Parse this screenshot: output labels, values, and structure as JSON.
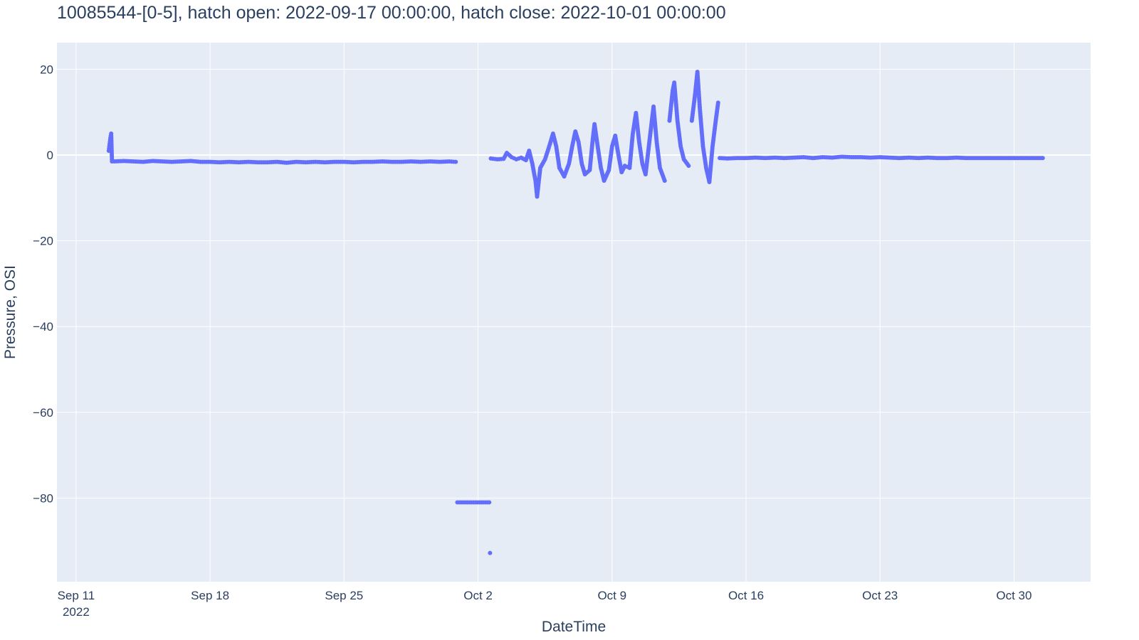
{
  "chart_data": {
    "type": "scatter",
    "title": "10085544-[0-5], hatch open: 2022-09-17 00:00:00, hatch close: 2022-10-01 00:00:00",
    "xlabel": "DateTime",
    "ylabel": "Pressure, OSI",
    "x_range": [
      "2022-09-10T00:00:00",
      "2022-11-03T00:00:00"
    ],
    "ylim": [
      -99.5,
      26.2
    ],
    "x_ticks": [
      {
        "date": "2022-09-11",
        "label": "Sep 11",
        "sublabel": "2022"
      },
      {
        "date": "2022-09-18",
        "label": "Sep 18"
      },
      {
        "date": "2022-09-25",
        "label": "Sep 25"
      },
      {
        "date": "2022-10-02",
        "label": "Oct 2"
      },
      {
        "date": "2022-10-09",
        "label": "Oct 9"
      },
      {
        "date": "2022-10-16",
        "label": "Oct 16"
      },
      {
        "date": "2022-10-23",
        "label": "Oct 23"
      },
      {
        "date": "2022-10-30",
        "label": "Oct 30"
      }
    ],
    "y_ticks": [
      {
        "value": 20,
        "label": "20"
      },
      {
        "value": 0,
        "label": "0"
      },
      {
        "value": -20,
        "label": "−20"
      },
      {
        "value": -40,
        "label": "−40"
      },
      {
        "value": -60,
        "label": "−60"
      },
      {
        "value": -80,
        "label": "−80"
      }
    ],
    "grid": true,
    "marker_color": "#636efa",
    "plot_bg": "#e5ecf6",
    "grid_color": "#ffffff",
    "series": [
      {
        "points": [
          [
            "2022-09-12T17:00",
            1.0
          ],
          [
            "2022-09-12T18:00",
            2.5
          ],
          [
            "2022-09-12T19:00",
            4.0
          ],
          [
            "2022-09-12T20:00",
            5.0
          ],
          [
            "2022-09-12T21:00",
            -1.5
          ],
          [
            "2022-09-13T00:00",
            -1.5
          ],
          [
            "2022-09-13T12:00",
            -1.4
          ],
          [
            "2022-09-14T00:00",
            -1.5
          ],
          [
            "2022-09-14T12:00",
            -1.6
          ],
          [
            "2022-09-15T00:00",
            -1.4
          ],
          [
            "2022-09-15T12:00",
            -1.5
          ],
          [
            "2022-09-16T00:00",
            -1.6
          ],
          [
            "2022-09-16T12:00",
            -1.5
          ],
          [
            "2022-09-17T00:00",
            -1.4
          ],
          [
            "2022-09-17T12:00",
            -1.6
          ],
          [
            "2022-09-18T00:00",
            -1.6
          ],
          [
            "2022-09-18T12:00",
            -1.7
          ],
          [
            "2022-09-19T00:00",
            -1.6
          ],
          [
            "2022-09-19T12:00",
            -1.7
          ],
          [
            "2022-09-20T00:00",
            -1.6
          ],
          [
            "2022-09-20T12:00",
            -1.7
          ],
          [
            "2022-09-21T00:00",
            -1.7
          ],
          [
            "2022-09-21T12:00",
            -1.6
          ],
          [
            "2022-09-22T00:00",
            -1.8
          ],
          [
            "2022-09-22T12:00",
            -1.6
          ],
          [
            "2022-09-23T00:00",
            -1.7
          ],
          [
            "2022-09-23T12:00",
            -1.6
          ],
          [
            "2022-09-24T00:00",
            -1.7
          ],
          [
            "2022-09-24T12:00",
            -1.6
          ],
          [
            "2022-09-25T00:00",
            -1.6
          ],
          [
            "2022-09-25T12:00",
            -1.7
          ],
          [
            "2022-09-26T00:00",
            -1.6
          ],
          [
            "2022-09-26T12:00",
            -1.6
          ],
          [
            "2022-09-27T00:00",
            -1.5
          ],
          [
            "2022-09-27T12:00",
            -1.6
          ],
          [
            "2022-09-28T00:00",
            -1.6
          ],
          [
            "2022-09-28T12:00",
            -1.5
          ],
          [
            "2022-09-29T00:00",
            -1.6
          ],
          [
            "2022-09-29T12:00",
            -1.5
          ],
          [
            "2022-09-30T00:00",
            -1.6
          ],
          [
            "2022-09-30T12:00",
            -1.5
          ],
          [
            "2022-09-30T20:00",
            -1.6
          ],
          [
            "2022-09-30T22:00",
            -81.0
          ],
          [
            "2022-10-01T03:00",
            -81.0
          ],
          [
            "2022-10-01T08:00",
            -81.0
          ],
          [
            "2022-10-01T13:00",
            -81.0
          ],
          [
            "2022-10-01T18:00",
            -81.0
          ],
          [
            "2022-10-01T23:00",
            -81.0
          ],
          [
            "2022-10-02T04:00",
            -81.0
          ],
          [
            "2022-10-02T09:00",
            -81.0
          ],
          [
            "2022-10-02T14:00",
            -81.0
          ],
          [
            "2022-10-02T15:00",
            -92.8
          ],
          [
            "2022-10-02T16:00",
            -0.8
          ],
          [
            "2022-10-03T00:00",
            -1.0
          ],
          [
            "2022-10-03T08:00",
            -0.9
          ],
          [
            "2022-10-03T12:00",
            0.5
          ],
          [
            "2022-10-03T18:00",
            -0.5
          ],
          [
            "2022-10-04T00:00",
            -1.0
          ],
          [
            "2022-10-04T06:00",
            -0.6
          ],
          [
            "2022-10-04T12:00",
            -1.2
          ],
          [
            "2022-10-04T16:00",
            1.0
          ],
          [
            "2022-10-04T20:00",
            -2.0
          ],
          [
            "2022-10-05T00:00",
            -6.0
          ],
          [
            "2022-10-05T02:00",
            -9.7
          ],
          [
            "2022-10-05T06:00",
            -3.0
          ],
          [
            "2022-10-05T12:00",
            -1.0
          ],
          [
            "2022-10-05T18:00",
            2.5
          ],
          [
            "2022-10-05T22:00",
            5.0
          ],
          [
            "2022-10-06T02:00",
            2.0
          ],
          [
            "2022-10-06T06:00",
            -3.0
          ],
          [
            "2022-10-06T12:00",
            -5.0
          ],
          [
            "2022-10-06T18:00",
            -2.0
          ],
          [
            "2022-10-06T22:00",
            2.0
          ],
          [
            "2022-10-07T02:00",
            5.5
          ],
          [
            "2022-10-07T06:00",
            3.0
          ],
          [
            "2022-10-07T10:00",
            -2.0
          ],
          [
            "2022-10-07T14:00",
            -4.5
          ],
          [
            "2022-10-07T20:00",
            -3.5
          ],
          [
            "2022-10-08T00:00",
            4.0
          ],
          [
            "2022-10-08T02:00",
            7.2
          ],
          [
            "2022-10-08T06:00",
            2.0
          ],
          [
            "2022-10-08T10:00",
            -3.0
          ],
          [
            "2022-10-08T14:00",
            -6.0
          ],
          [
            "2022-10-08T20:00",
            -3.5
          ],
          [
            "2022-10-09T00:00",
            2.0
          ],
          [
            "2022-10-09T04:00",
            4.5
          ],
          [
            "2022-10-09T08:00",
            0.0
          ],
          [
            "2022-10-09T12:00",
            -4.0
          ],
          [
            "2022-10-09T16:00",
            -2.5
          ],
          [
            "2022-10-09T22:00",
            -3.0
          ],
          [
            "2022-10-10T02:00",
            5.0
          ],
          [
            "2022-10-10T06:00",
            9.8
          ],
          [
            "2022-10-10T10:00",
            3.0
          ],
          [
            "2022-10-10T14:00",
            -2.0
          ],
          [
            "2022-10-10T18:00",
            -4.5
          ],
          [
            "2022-10-11T00:00",
            5.0
          ],
          [
            "2022-10-11T04:00",
            11.3
          ],
          [
            "2022-10-11T08:00",
            3.0
          ],
          [
            "2022-10-11T12:00",
            -3.0
          ],
          [
            "2022-10-11T18:00",
            -6.0
          ],
          [
            "2022-10-12T00:00",
            8.0
          ],
          [
            "2022-10-12T04:00",
            15.0
          ],
          [
            "2022-10-12T06:00",
            16.9
          ],
          [
            "2022-10-12T10:00",
            8.0
          ],
          [
            "2022-10-12T14:00",
            2.0
          ],
          [
            "2022-10-12T18:00",
            -1.0
          ],
          [
            "2022-10-13T00:00",
            -2.5
          ],
          [
            "2022-10-13T04:00",
            8.0
          ],
          [
            "2022-10-13T08:00",
            14.0
          ],
          [
            "2022-10-13T11:00",
            19.4
          ],
          [
            "2022-10-13T14:00",
            11.0
          ],
          [
            "2022-10-13T18:00",
            2.0
          ],
          [
            "2022-10-13T22:00",
            -3.0
          ],
          [
            "2022-10-14T02:00",
            -6.3
          ],
          [
            "2022-10-14T06:00",
            2.0
          ],
          [
            "2022-10-14T10:00",
            8.0
          ],
          [
            "2022-10-14T13:00",
            12.2
          ],
          [
            "2022-10-14T15:00",
            -0.7
          ],
          [
            "2022-10-15T00:00",
            -0.8
          ],
          [
            "2022-10-15T12:00",
            -0.7
          ],
          [
            "2022-10-16T00:00",
            -0.7
          ],
          [
            "2022-10-16T12:00",
            -0.6
          ],
          [
            "2022-10-17T00:00",
            -0.7
          ],
          [
            "2022-10-17T12:00",
            -0.6
          ],
          [
            "2022-10-18T00:00",
            -0.7
          ],
          [
            "2022-10-18T12:00",
            -0.6
          ],
          [
            "2022-10-19T00:00",
            -0.5
          ],
          [
            "2022-10-19T12:00",
            -0.7
          ],
          [
            "2022-10-20T00:00",
            -0.5
          ],
          [
            "2022-10-20T12:00",
            -0.6
          ],
          [
            "2022-10-21T00:00",
            -0.4
          ],
          [
            "2022-10-21T12:00",
            -0.5
          ],
          [
            "2022-10-22T00:00",
            -0.5
          ],
          [
            "2022-10-22T12:00",
            -0.6
          ],
          [
            "2022-10-23T00:00",
            -0.5
          ],
          [
            "2022-10-23T12:00",
            -0.6
          ],
          [
            "2022-10-24T00:00",
            -0.7
          ],
          [
            "2022-10-24T12:00",
            -0.6
          ],
          [
            "2022-10-25T00:00",
            -0.7
          ],
          [
            "2022-10-25T12:00",
            -0.6
          ],
          [
            "2022-10-26T00:00",
            -0.7
          ],
          [
            "2022-10-26T12:00",
            -0.7
          ],
          [
            "2022-10-27T00:00",
            -0.6
          ],
          [
            "2022-10-27T12:00",
            -0.7
          ],
          [
            "2022-10-28T00:00",
            -0.7
          ],
          [
            "2022-10-28T12:00",
            -0.7
          ],
          [
            "2022-10-29T00:00",
            -0.7
          ],
          [
            "2022-10-29T12:00",
            -0.7
          ],
          [
            "2022-10-30T00:00",
            -0.7
          ],
          [
            "2022-10-30T12:00",
            -0.7
          ],
          [
            "2022-10-31T00:00",
            -0.7
          ],
          [
            "2022-10-31T12:00",
            -0.7
          ]
        ]
      }
    ]
  }
}
